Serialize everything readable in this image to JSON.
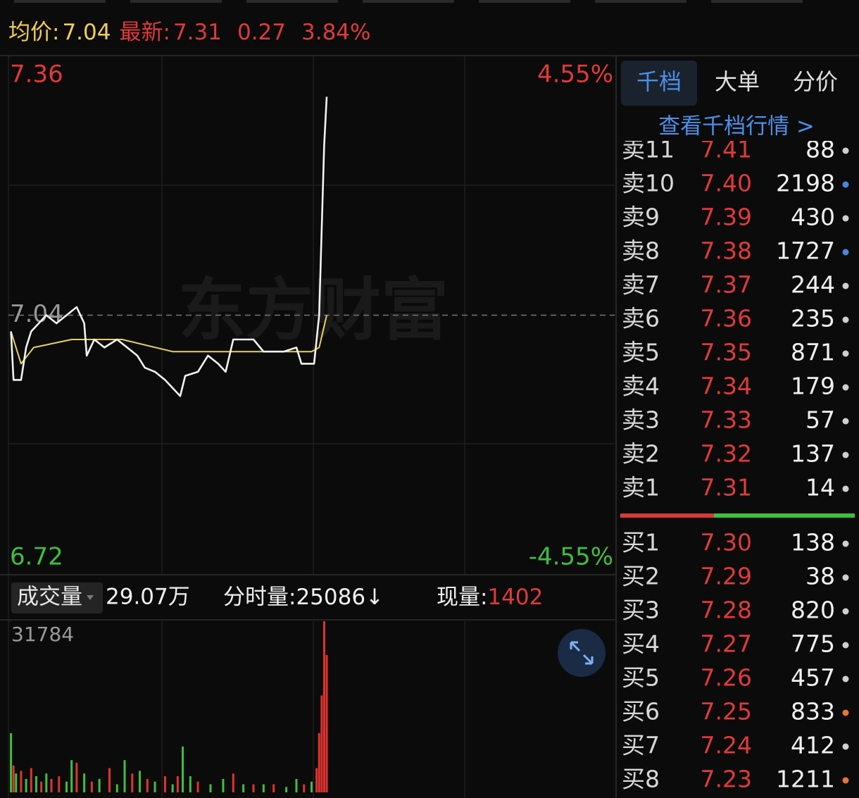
{
  "header": {
    "avg_label": "均价:",
    "avg": "7.04",
    "last_label": "最新:",
    "last": "7.31",
    "change": "0.27",
    "change_pct": "3.84%"
  },
  "chart_data": [
    {
      "type": "line",
      "watermark": "东方财富",
      "xlim": [
        0,
        240
      ],
      "ylim": [
        6.72,
        7.36
      ],
      "yticks": [
        6.72,
        7.04,
        7.36
      ],
      "y2lim": [
        -4.55,
        4.55
      ],
      "y2ticks": [
        {
          "value": -4.55,
          "label": "-4.55%"
        },
        {
          "value": 4.55,
          "label": "4.55%"
        }
      ],
      "series": [
        {
          "color": "#f2f2f2",
          "x": [
            1,
            2,
            5,
            7,
            9,
            12,
            15,
            19,
            23,
            27,
            30,
            31,
            34,
            38,
            43,
            47,
            51,
            54,
            58,
            62,
            65,
            68,
            70,
            75,
            79,
            83,
            86,
            89,
            93,
            97,
            101,
            105,
            109,
            114,
            116,
            121,
            123,
            125,
            126
          ],
          "values": [
            7.02,
            6.96,
            6.96,
            7.0,
            7.02,
            7.03,
            7.04,
            7.03,
            7.04,
            7.05,
            7.03,
            6.99,
            7.01,
            7.0,
            7.01,
            7.0,
            6.99,
            6.975,
            6.97,
            6.96,
            6.95,
            6.94,
            6.965,
            6.97,
            6.99,
            6.98,
            6.97,
            7.01,
            7.01,
            7.01,
            6.995,
            6.995,
            6.995,
            7.0,
            6.98,
            6.98,
            7.04,
            7.25,
            7.31
          ]
        },
        {
          "color": "#e6d35a",
          "x": [
            1,
            5,
            10,
            25,
            45,
            65,
            90,
            120,
            123,
            126
          ],
          "values": [
            7.02,
            6.98,
            7.0,
            7.01,
            7.01,
            6.995,
            6.995,
            6.995,
            7.0,
            7.04
          ]
        }
      ]
    },
    {
      "type": "bar",
      "ylim": [
        0,
        31784
      ],
      "yticks": [
        31784
      ],
      "x": [
        1,
        2,
        3,
        5,
        7,
        9,
        11,
        13,
        15,
        17,
        20,
        23,
        25,
        27,
        30,
        33,
        36,
        40,
        43,
        46,
        49,
        52,
        55,
        58,
        62,
        65,
        67,
        69,
        72,
        75,
        80,
        85,
        89,
        93,
        97,
        101,
        105,
        110,
        114,
        117,
        120,
        122,
        123,
        124,
        125,
        126
      ],
      "values": [
        11000,
        5000,
        3500,
        4000,
        2500,
        4500,
        3000,
        2000,
        3500,
        2500,
        3000,
        2000,
        6000,
        5500,
        3500,
        2000,
        2500,
        4500,
        1500,
        6000,
        3500,
        4000,
        2500,
        2000,
        3000,
        1500,
        3000,
        8500,
        3000,
        2000,
        1500,
        2500,
        3500,
        1500,
        1500,
        1500,
        1500,
        1000,
        2500,
        1500,
        2000,
        4500,
        11000,
        18000,
        31784,
        25500
      ],
      "colors": [
        "#3fbf3f",
        "#e0332e",
        "#3fbf3f",
        "#e0332e",
        "#3fbf3f",
        "#e0332e",
        "#3fbf3f",
        "#e0332e",
        "#3fbf3f",
        "#e0332e",
        "#e0332e",
        "#3fbf3f",
        "#3fbf3f",
        "#e0332e",
        "#3fbf3f",
        "#e0332e",
        "#3fbf3f",
        "#e0332e",
        "#3fbf3f",
        "#3fbf3f",
        "#e0332e",
        "#3fbf3f",
        "#e0332e",
        "#3fbf3f",
        "#e0332e",
        "#3fbf3f",
        "#e0332e",
        "#3fbf3f",
        "#3fbf3f",
        "#e0332e",
        "#3fbf3f",
        "#3fbf3f",
        "#e0332e",
        "#3fbf3f",
        "#e0332e",
        "#3fbf3f",
        "#e0332e",
        "#3fbf3f",
        "#3fbf3f",
        "#e0332e",
        "#3fbf3f",
        "#e0332e",
        "#e0332e",
        "#e0332e",
        "#e0332e",
        "#e0332e"
      ]
    }
  ],
  "volume_bar": {
    "selector": "成交量",
    "total": "29.07万",
    "period_label": "分时量:",
    "period": "25086↓",
    "current_label": "现量:",
    "current": "1402"
  },
  "order_book": {
    "tabs": [
      "千档",
      "大单",
      "分价"
    ],
    "link": "查看千档行情 >",
    "asks": [
      {
        "label": "卖11",
        "price": "7.41",
        "volume": "88",
        "dot": "#cfcfcf"
      },
      {
        "label": "卖10",
        "price": "7.40",
        "volume": "2198",
        "dot": "#4a86e0"
      },
      {
        "label": "卖9",
        "price": "7.39",
        "volume": "430",
        "dot": "#cfcfcf"
      },
      {
        "label": "卖8",
        "price": "7.38",
        "volume": "1727",
        "dot": "#4a86e0"
      },
      {
        "label": "卖7",
        "price": "7.37",
        "volume": "244",
        "dot": "#cfcfcf"
      },
      {
        "label": "卖6",
        "price": "7.36",
        "volume": "235",
        "dot": "#cfcfcf"
      },
      {
        "label": "卖5",
        "price": "7.35",
        "volume": "871",
        "dot": "#cfcfcf"
      },
      {
        "label": "卖4",
        "price": "7.34",
        "volume": "179",
        "dot": "#cfcfcf"
      },
      {
        "label": "卖3",
        "price": "7.33",
        "volume": "57",
        "dot": "#cfcfcf"
      },
      {
        "label": "卖2",
        "price": "7.32",
        "volume": "137",
        "dot": "#cfcfcf"
      },
      {
        "label": "卖1",
        "price": "7.31",
        "volume": "14",
        "dot": "#cfcfcf"
      }
    ],
    "bids": [
      {
        "label": "买1",
        "price": "7.30",
        "volume": "138",
        "dot": "#cfcfcf"
      },
      {
        "label": "买2",
        "price": "7.29",
        "volume": "38",
        "dot": "#cfcfcf"
      },
      {
        "label": "买3",
        "price": "7.28",
        "volume": "820",
        "dot": "#cfcfcf"
      },
      {
        "label": "买4",
        "price": "7.27",
        "volume": "775",
        "dot": "#cfcfcf"
      },
      {
        "label": "买5",
        "price": "7.26",
        "volume": "457",
        "dot": "#cfcfcf"
      },
      {
        "label": "买6",
        "price": "7.25",
        "volume": "833",
        "dot": "#e8743a"
      },
      {
        "label": "买7",
        "price": "7.24",
        "volume": "412",
        "dot": "#cfcfcf"
      },
      {
        "label": "买8",
        "price": "7.23",
        "volume": "1211",
        "dot": "#e8743a"
      }
    ]
  }
}
